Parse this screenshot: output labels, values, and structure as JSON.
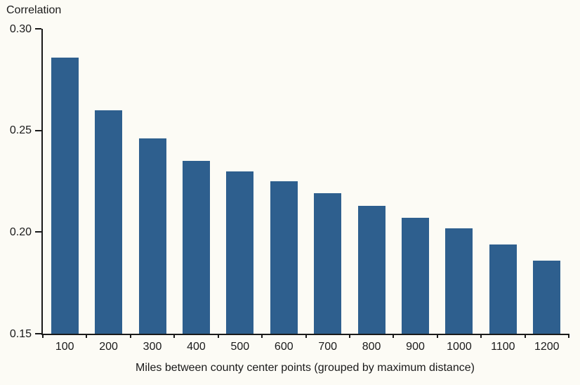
{
  "chart_data": {
    "type": "bar",
    "title": "",
    "ylabel": "Correlation",
    "xlabel": "Miles between county center points (grouped by maximum distance)",
    "categories": [
      "100",
      "200",
      "300",
      "400",
      "500",
      "600",
      "700",
      "800",
      "900",
      "1000",
      "1100",
      "1200"
    ],
    "values": [
      0.286,
      0.26,
      0.246,
      0.235,
      0.23,
      0.225,
      0.219,
      0.213,
      0.207,
      0.202,
      0.194,
      0.186
    ],
    "ylim": [
      0.15,
      0.3
    ],
    "y_ticks": [
      0.3,
      0.25,
      0.2,
      0.15
    ],
    "y_tick_labels": [
      "0.30",
      "0.25",
      "0.20",
      "0.15"
    ],
    "grid": false,
    "legend_position": "none",
    "bar_color": "#2e5f8e",
    "background_color": "#fcfbf5",
    "axis_color": "#1a1a1a",
    "text_color": "#1a1a1a"
  }
}
